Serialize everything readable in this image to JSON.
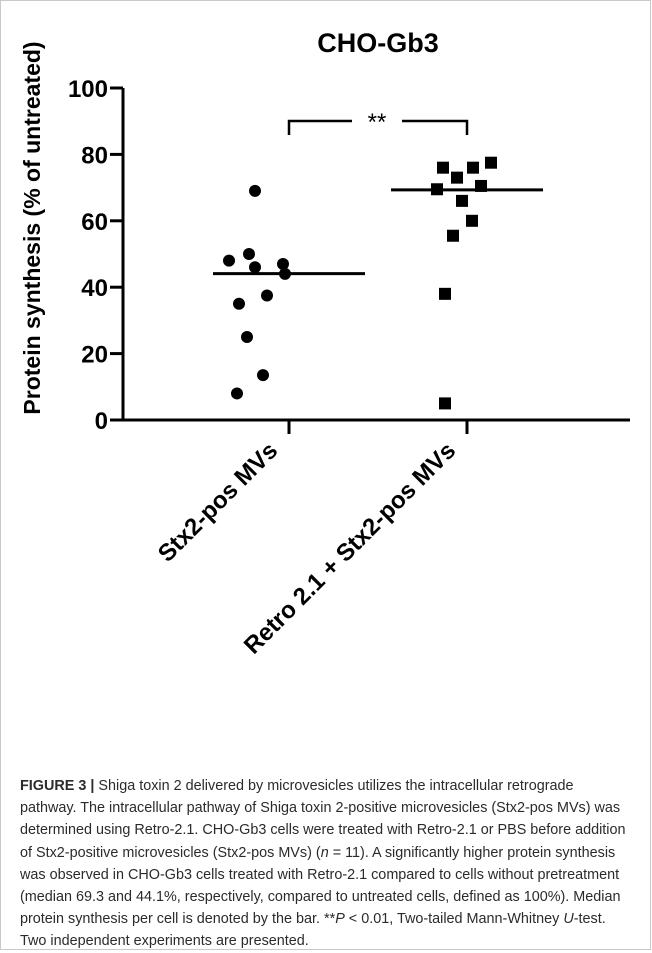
{
  "chart_data": {
    "type": "scatter",
    "title": "CHO-Gb3",
    "ylabel": "Protein synthesis (% of untreated)",
    "xlabel": "",
    "ylim": [
      0,
      100
    ],
    "yticks": [
      0,
      20,
      40,
      60,
      80,
      100
    ],
    "categories": [
      "Stx2-pos MVs",
      "Retro 2.1 + Stx2-pos MVs"
    ],
    "grid": false,
    "series": [
      {
        "category": "Stx2-pos MVs",
        "marker": "circle",
        "points": [
          {
            "offset": -0.34,
            "value": 69
          },
          {
            "offset": -0.4,
            "value": 50
          },
          {
            "offset": -0.6,
            "value": 48
          },
          {
            "offset": -0.06,
            "value": 47
          },
          {
            "offset": -0.34,
            "value": 46
          },
          {
            "offset": -0.04,
            "value": 44
          },
          {
            "offset": -0.22,
            "value": 37.5
          },
          {
            "offset": -0.5,
            "value": 35
          },
          {
            "offset": -0.42,
            "value": 25
          },
          {
            "offset": -0.26,
            "value": 13.5
          },
          {
            "offset": -0.52,
            "value": 8
          }
        ],
        "median": 44.1
      },
      {
        "category": "Retro 2.1 + Stx2-pos MVs",
        "marker": "square",
        "points": [
          {
            "offset": 0.24,
            "value": 77.5
          },
          {
            "offset": -0.24,
            "value": 76
          },
          {
            "offset": 0.06,
            "value": 76
          },
          {
            "offset": -0.1,
            "value": 73
          },
          {
            "offset": 0.14,
            "value": 70.5
          },
          {
            "offset": -0.3,
            "value": 69.5
          },
          {
            "offset": -0.05,
            "value": 66
          },
          {
            "offset": 0.05,
            "value": 60
          },
          {
            "offset": -0.14,
            "value": 55.5
          },
          {
            "offset": -0.22,
            "value": 38
          },
          {
            "offset": -0.22,
            "value": 5
          }
        ],
        "median": 69.3
      }
    ],
    "annotations": [
      {
        "type": "significance-bracket",
        "from": "Stx2-pos MVs",
        "to": "Retro 2.1 + Stx2-pos MVs",
        "label": "**"
      }
    ]
  },
  "caption": {
    "figure_label": "FIGURE 3 |",
    "text": " Shiga toxin 2 delivered by microvesicles utilizes the intracellular retrograde pathway. The intracellular pathway of Shiga toxin 2-positive microvesicles (Stx2-pos MVs) was determined using Retro-2.1. CHO-Gb3 cells were treated with Retro-2.1 or PBS before addition of Stx2-positive microvesicles (Stx2-pos MVs) (",
    "n_symbol": "n",
    "n_value": " = 11). A significantly higher protein synthesis was observed in CHO-Gb3 cells treated with Retro-2.1 compared to cells without pretreatment (median 69.3 and 44.1%, respectively, compared to untreated cells, defined as 100%). Median protein synthesis per cell is denoted by the bar. **",
    "p_symbol": "P",
    "p_text": " < 0.01, Two-tailed Mann-Whitney ",
    "u_symbol": "U",
    "end_text": "-test. Two independent experiments are presented."
  }
}
